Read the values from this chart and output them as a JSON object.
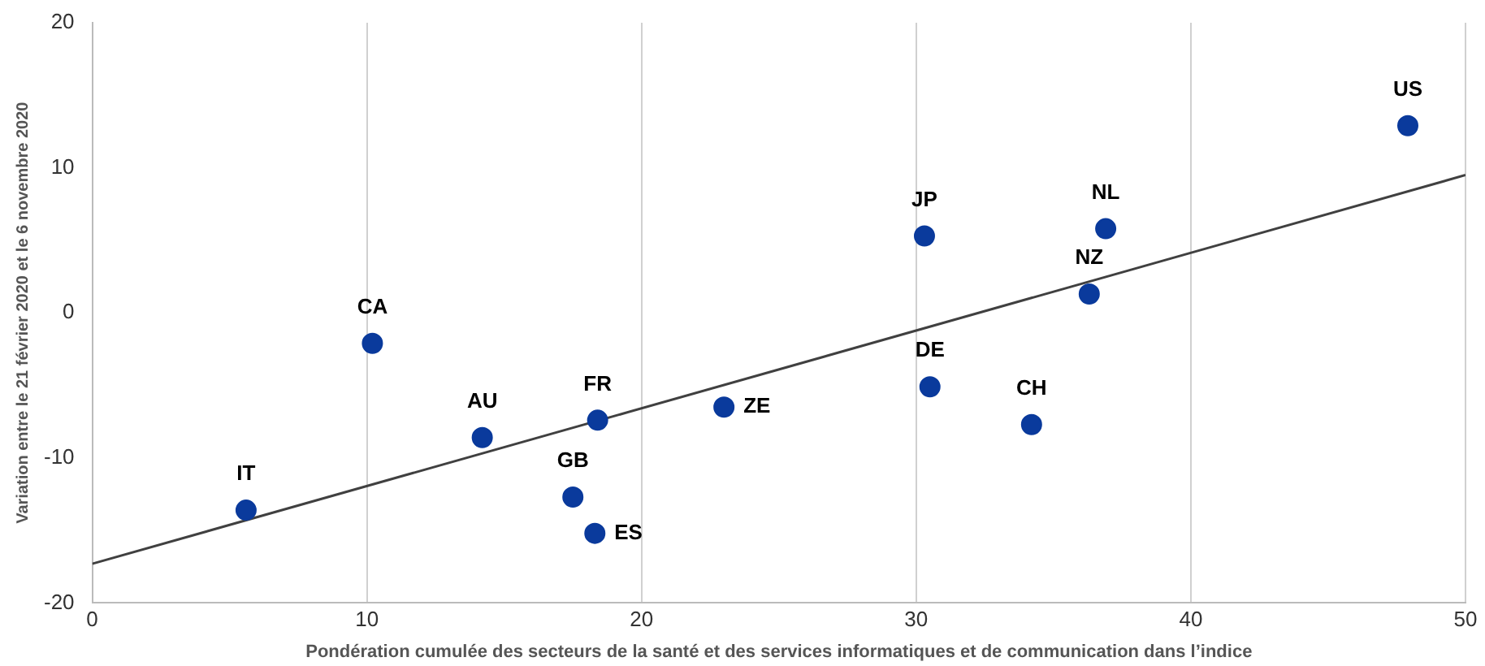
{
  "chart_data": {
    "type": "scatter",
    "xlabel": "Pondération cumulée des secteurs de la santé et des services informatiques et de communication dans l’indice",
    "ylabel": "Variation entre le 21 février 2020 et le 6 novembre 2020",
    "series": [
      {
        "color": "#0a3a9c",
        "marker": "circle",
        "x": [
          5.6,
          10.2,
          14.2,
          18.4,
          17.5,
          18.3,
          23.0,
          30.3,
          30.5,
          34.2,
          36.3,
          36.9,
          47.9
        ],
        "values": [
          -13.6,
          -2.1,
          -8.6,
          -7.4,
          -12.7,
          -15.2,
          -6.5,
          5.3,
          -5.1,
          -7.7,
          1.3,
          5.8,
          12.9
        ]
      },
      {
        "type": "line",
        "color": "#404040",
        "x": [
          0,
          50
        ],
        "values": [
          -17.3,
          9.5
        ]
      }
    ],
    "annotations": [
      {
        "text": "IT",
        "x": 5.6,
        "y": -13.6
      },
      {
        "text": "CA",
        "x": 10.2,
        "y": -2.1
      },
      {
        "text": "AU",
        "x": 14.2,
        "y": -8.6
      },
      {
        "text": "FR",
        "x": 18.4,
        "y": -7.4
      },
      {
        "text": "GB",
        "x": 17.5,
        "y": -12.7
      },
      {
        "text": "ES",
        "x": 18.3,
        "y": -15.2
      },
      {
        "text": "ZE",
        "x": 23.0,
        "y": -6.5
      },
      {
        "text": "JP",
        "x": 30.3,
        "y": 5.3
      },
      {
        "text": "DE",
        "x": 30.5,
        "y": -5.1
      },
      {
        "text": "CH",
        "x": 34.2,
        "y": -7.7
      },
      {
        "text": "NZ",
        "x": 36.3,
        "y": 1.3
      },
      {
        "text": "NL",
        "x": 36.9,
        "y": 5.8
      },
      {
        "text": "US",
        "x": 47.9,
        "y": 12.9
      }
    ],
    "xlim": [
      0,
      50
    ],
    "xticks": [
      0,
      10,
      20,
      30,
      40,
      50
    ],
    "ylim": [
      -20,
      20
    ],
    "yticks": [
      -20,
      -10,
      0,
      10,
      20
    ],
    "grid": "x",
    "legend": false
  }
}
